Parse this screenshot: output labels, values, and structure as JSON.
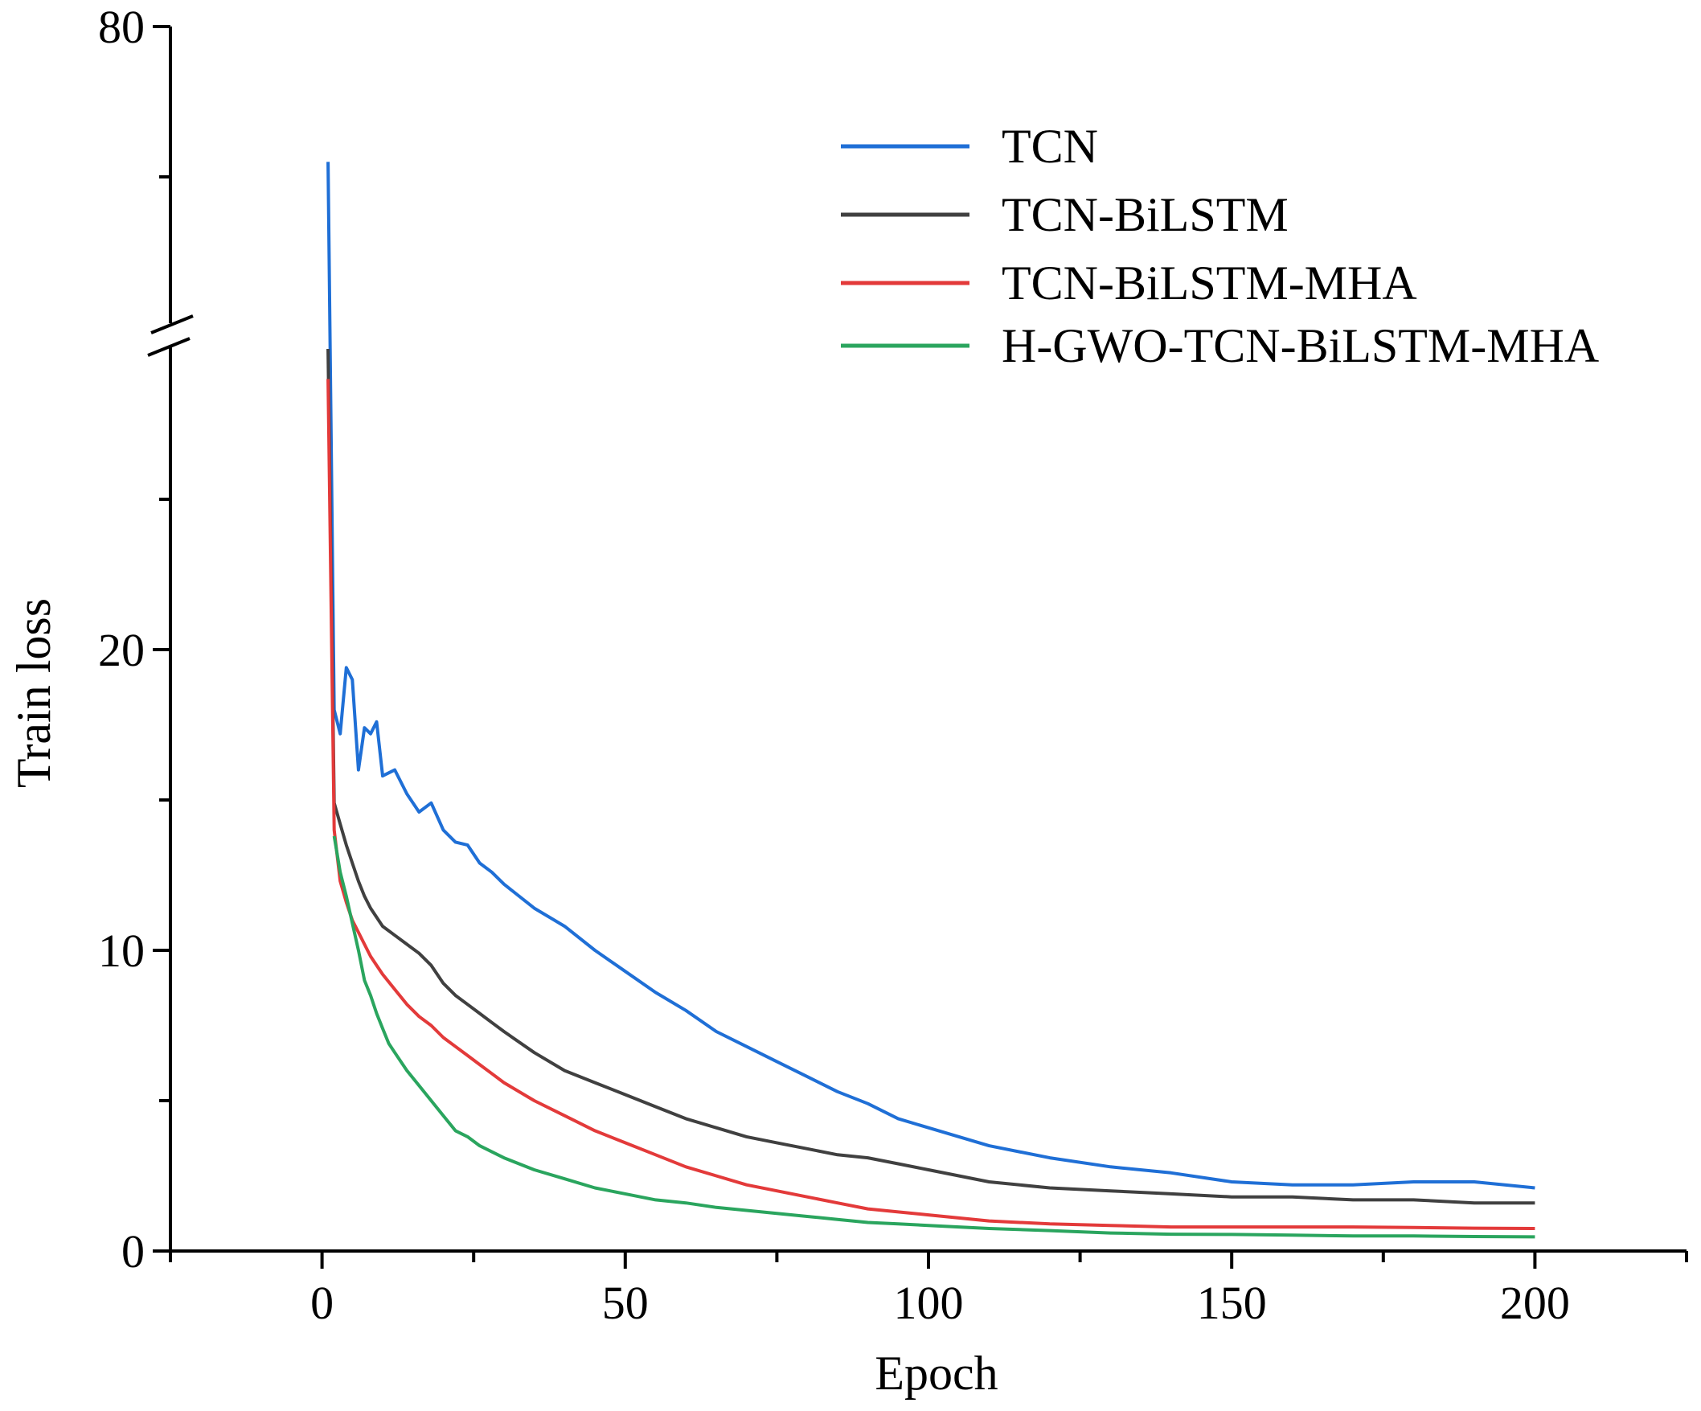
{
  "chart_data": {
    "type": "line",
    "xlabel": "Epoch",
    "ylabel": "Train loss",
    "xlim": [
      -25,
      225
    ],
    "ylim": [
      0,
      80
    ],
    "axis_break": {
      "lower": 30,
      "upper": 60
    },
    "x_ticks": [
      0,
      50,
      100,
      150,
      200
    ],
    "x_tick_labels": [
      "0",
      "50",
      "100",
      "150",
      "200"
    ],
    "y_ticks": [
      0,
      10,
      20,
      80
    ],
    "y_tick_labels": [
      "0",
      "10",
      "20",
      "80"
    ],
    "legend_position": "top-right",
    "colors": {
      "TCN": "#1f6fd6",
      "TCN-BiLSTM": "#404040",
      "TCN-BiLSTM-MHA": "#e33a3a",
      "H-GWO-TCN-BiLSTM-MHA": "#2aa55e"
    },
    "series": [
      {
        "name": "TCN",
        "x": [
          1,
          2,
          3,
          4,
          5,
          6,
          7,
          8,
          9,
          10,
          12,
          14,
          16,
          18,
          20,
          22,
          24,
          26,
          28,
          30,
          35,
          40,
          45,
          50,
          55,
          60,
          65,
          70,
          75,
          80,
          85,
          90,
          95,
          100,
          110,
          120,
          130,
          140,
          150,
          160,
          170,
          180,
          190,
          200
        ],
        "y": [
          71.0,
          18.0,
          17.2,
          19.4,
          19.0,
          16.0,
          17.4,
          17.2,
          17.6,
          15.8,
          16.0,
          15.2,
          14.6,
          14.9,
          14.0,
          13.6,
          13.5,
          12.9,
          12.6,
          12.2,
          11.4,
          10.8,
          10.0,
          9.3,
          8.6,
          8.0,
          7.3,
          6.8,
          6.3,
          5.8,
          5.3,
          4.9,
          4.4,
          4.1,
          3.5,
          3.1,
          2.8,
          2.6,
          2.3,
          2.2,
          2.2,
          2.3,
          2.3,
          2.1
        ]
      },
      {
        "name": "TCN-BiLSTM",
        "x": [
          1,
          2,
          3,
          4,
          5,
          6,
          7,
          8,
          9,
          10,
          12,
          14,
          16,
          18,
          20,
          22,
          24,
          26,
          28,
          30,
          35,
          40,
          45,
          50,
          55,
          60,
          65,
          70,
          75,
          80,
          85,
          90,
          95,
          100,
          110,
          120,
          130,
          140,
          150,
          160,
          170,
          180,
          190,
          200
        ],
        "y": [
          30.0,
          14.9,
          14.2,
          13.5,
          12.9,
          12.3,
          11.8,
          11.4,
          11.1,
          10.8,
          10.5,
          10.2,
          9.9,
          9.5,
          8.9,
          8.5,
          8.2,
          7.9,
          7.6,
          7.3,
          6.6,
          6.0,
          5.6,
          5.2,
          4.8,
          4.4,
          4.1,
          3.8,
          3.6,
          3.4,
          3.2,
          3.1,
          2.9,
          2.7,
          2.3,
          2.1,
          2.0,
          1.9,
          1.8,
          1.8,
          1.7,
          1.7,
          1.6,
          1.6
        ]
      },
      {
        "name": "TCN-BiLSTM-MHA",
        "x": [
          1,
          2,
          3,
          4,
          5,
          6,
          7,
          8,
          9,
          10,
          12,
          14,
          16,
          18,
          20,
          22,
          24,
          26,
          28,
          30,
          35,
          40,
          45,
          50,
          55,
          60,
          65,
          70,
          75,
          80,
          85,
          90,
          95,
          100,
          110,
          120,
          130,
          140,
          150,
          160,
          170,
          180,
          190,
          200
        ],
        "y": [
          29.0,
          14.0,
          12.3,
          11.6,
          11.0,
          10.6,
          10.2,
          9.8,
          9.5,
          9.2,
          8.7,
          8.2,
          7.8,
          7.5,
          7.1,
          6.8,
          6.5,
          6.2,
          5.9,
          5.6,
          5.0,
          4.5,
          4.0,
          3.6,
          3.2,
          2.8,
          2.5,
          2.2,
          2.0,
          1.8,
          1.6,
          1.4,
          1.3,
          1.2,
          1.0,
          0.9,
          0.85,
          0.8,
          0.8,
          0.8,
          0.8,
          0.78,
          0.76,
          0.75
        ]
      },
      {
        "name": "H-GWO-TCN-BiLSTM-MHA",
        "x": [
          2,
          3,
          4,
          5,
          6,
          7,
          8,
          9,
          10,
          11,
          12,
          14,
          16,
          18,
          20,
          22,
          24,
          26,
          28,
          30,
          35,
          40,
          45,
          50,
          55,
          60,
          65,
          70,
          75,
          80,
          85,
          90,
          95,
          100,
          110,
          120,
          130,
          140,
          150,
          160,
          170,
          180,
          190,
          200
        ],
        "y": [
          13.8,
          12.6,
          11.8,
          10.9,
          10.0,
          9.0,
          8.5,
          7.9,
          7.4,
          6.9,
          6.6,
          6.0,
          5.5,
          5.0,
          4.5,
          4.0,
          3.8,
          3.5,
          3.3,
          3.1,
          2.7,
          2.4,
          2.1,
          1.9,
          1.7,
          1.6,
          1.45,
          1.35,
          1.25,
          1.15,
          1.05,
          0.95,
          0.9,
          0.85,
          0.75,
          0.68,
          0.6,
          0.56,
          0.55,
          0.53,
          0.5,
          0.5,
          0.48,
          0.47
        ]
      }
    ]
  }
}
